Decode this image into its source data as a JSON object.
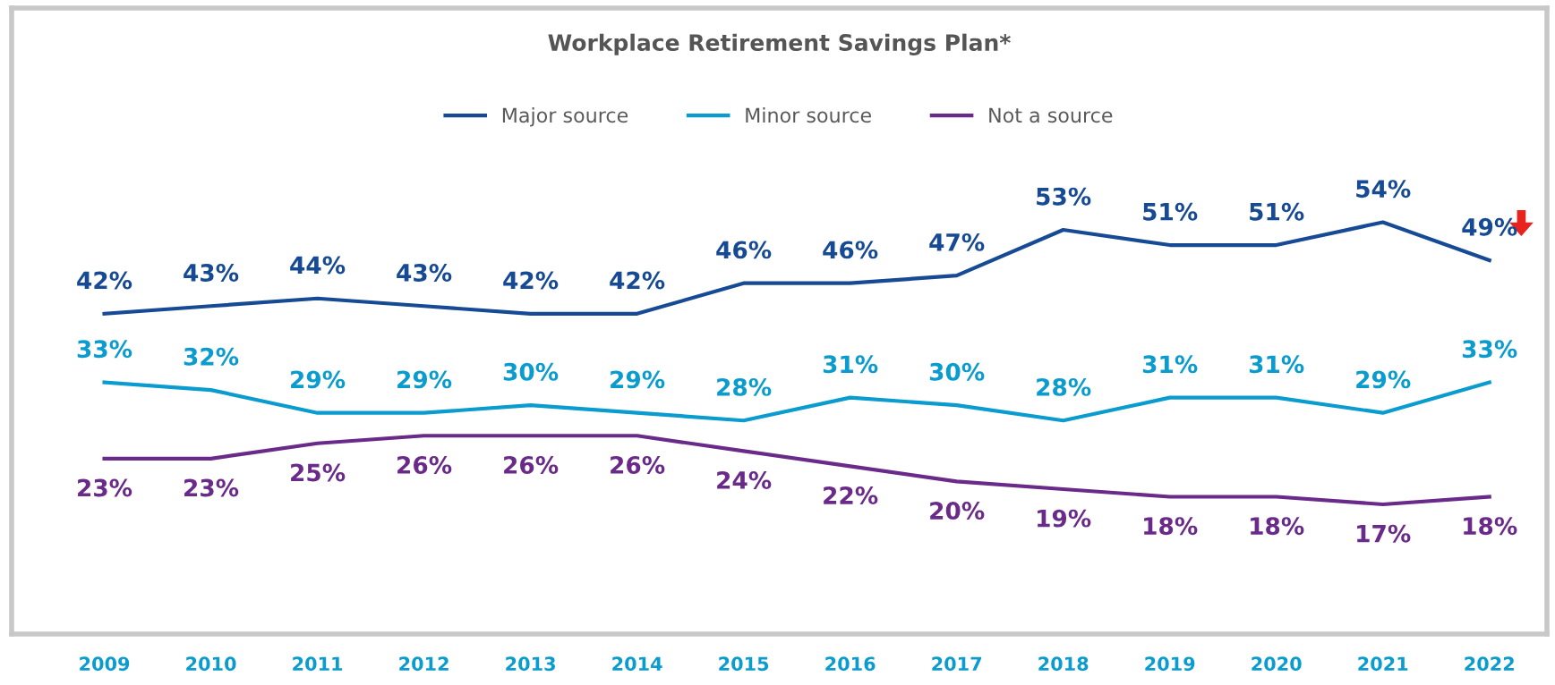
{
  "chart_data": {
    "type": "line",
    "title": "Workplace Retirement Savings Plan*",
    "categories": [
      "2009",
      "2010",
      "2011",
      "2012",
      "2013",
      "2014",
      "2015",
      "2016",
      "2017",
      "2018",
      "2019",
      "2020",
      "2021",
      "2022"
    ],
    "series": [
      {
        "name": "Major source",
        "color": "#174a94",
        "values": [
          42,
          43,
          44,
          43,
          42,
          42,
          46,
          46,
          47,
          53,
          51,
          51,
          54,
          49
        ],
        "value_labels": [
          "42%",
          "43%",
          "44%",
          "43%",
          "42%",
          "42%",
          "46%",
          "46%",
          "47%",
          "53%",
          "51%",
          "51%",
          "54%",
          "49%"
        ]
      },
      {
        "name": "Minor source",
        "color": "#0a9bcf",
        "values": [
          33,
          32,
          29,
          29,
          30,
          29,
          28,
          31,
          30,
          28,
          31,
          31,
          29,
          33
        ],
        "value_labels": [
          "33%",
          "32%",
          "29%",
          "29%",
          "30%",
          "29%",
          "28%",
          "31%",
          "30%",
          "28%",
          "31%",
          "31%",
          "29%",
          "33%"
        ]
      },
      {
        "name": "Not a source",
        "color": "#6a2a8a",
        "values": [
          23,
          23,
          25,
          26,
          26,
          26,
          24,
          22,
          20,
          19,
          18,
          18,
          17,
          18
        ],
        "value_labels": [
          "23%",
          "23%",
          "25%",
          "26%",
          "26%",
          "26%",
          "24%",
          "22%",
          "20%",
          "19%",
          "18%",
          "18%",
          "17%",
          "18%"
        ]
      }
    ],
    "tick_labels": "x",
    "legend": "top",
    "marker": "none",
    "line_style": "solid"
  }
}
